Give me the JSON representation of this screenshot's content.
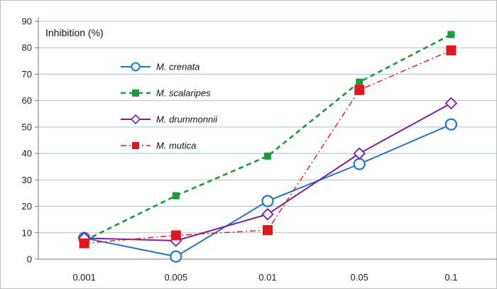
{
  "chart_data": {
    "type": "line",
    "ylabel": "Inhibition (%)",
    "categories": [
      "0.001",
      "0.005",
      "0.01",
      "0.05",
      "0.1"
    ],
    "ylim": [
      0,
      90
    ],
    "yticks": [
      0,
      10,
      20,
      30,
      40,
      50,
      60,
      70,
      80,
      90
    ],
    "grid": true,
    "legend_position": "top-left",
    "series": [
      {
        "name": "M. crenata",
        "values": [
          8,
          1,
          22,
          36,
          51
        ],
        "color": "#1f77c4",
        "dash": "solid",
        "marker": "circle"
      },
      {
        "name": "M. scalaripes",
        "values": [
          7,
          24,
          39,
          67,
          85
        ],
        "color": "#1a9a3a",
        "dash": "dashed",
        "marker": "square"
      },
      {
        "name": "M. drummonnii",
        "values": [
          8,
          7,
          17,
          40,
          59
        ],
        "color": "#7a1f9a",
        "dash": "solid",
        "marker": "diamond"
      },
      {
        "name": "M. mutica",
        "values": [
          6,
          9,
          11,
          64,
          79
        ],
        "color": "#e0181b",
        "dash": "dashdot",
        "marker": "square"
      }
    ]
  }
}
